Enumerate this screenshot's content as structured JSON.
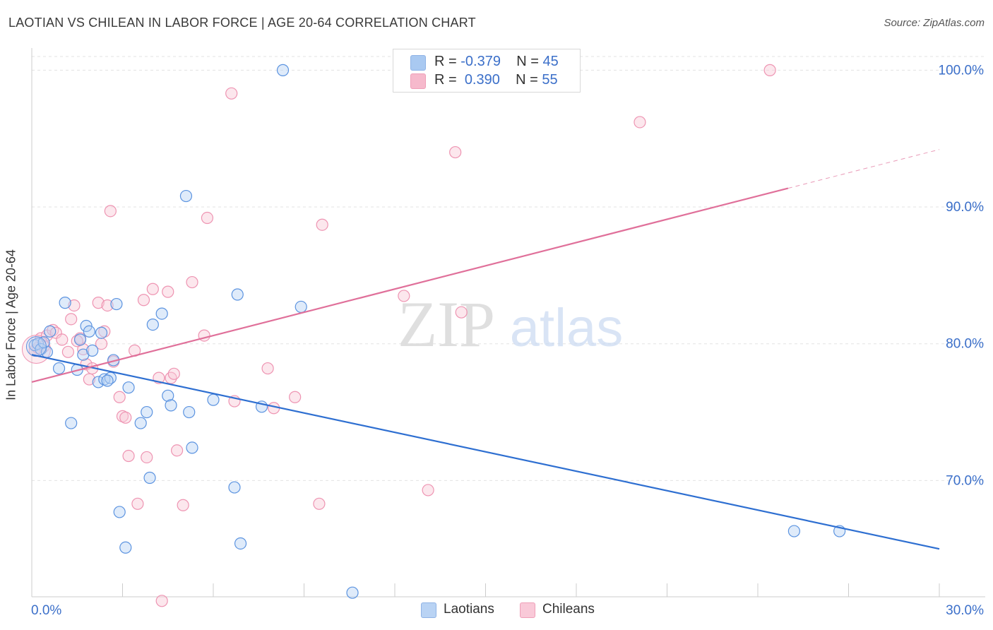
{
  "title": "LAOTIAN VS CHILEAN IN LABOR FORCE | AGE 20-64 CORRELATION CHART",
  "source": "Source: ZipAtlas.com",
  "watermark": {
    "zip": "ZIP",
    "atlas": "atlas"
  },
  "legend": {
    "rows": [
      {
        "r_label": "R =",
        "r_value": "-0.379",
        "n_label": "N =",
        "n_value": "45",
        "color": "#a9c9f1"
      },
      {
        "r_label": "R =",
        "r_value": "0.390",
        "n_label": "N =",
        "n_value": "55",
        "color": "#f6b9cc"
      }
    ]
  },
  "bottom_legend": {
    "laotians": "Laotians",
    "chileans": "Chileans"
  },
  "chart_data": {
    "type": "scatter",
    "ylabel": "In Labor Force | Age 20-64",
    "xlim": [
      0,
      30
    ],
    "ylim": [
      61.5,
      101
    ],
    "x_tick_labels": [
      "0.0%",
      "30.0%"
    ],
    "y_ticks": [
      70,
      80,
      90,
      100
    ],
    "y_tick_labels": [
      "70.0%",
      "80.0%",
      "90.0%",
      "100.0%"
    ],
    "grid": true,
    "colors": {
      "laotians": "#5b93e0",
      "laotians_line": "#2e6fd1",
      "chileans": "#ee94b2",
      "chileans_line": "#e0709a"
    },
    "series": [
      {
        "name": "Laotians",
        "trend": {
          "x0": 0,
          "y0": 79.2,
          "x1": 30,
          "y1": 65.0
        },
        "points": [
          [
            0.1,
            79.9
          ],
          [
            0.2,
            80.0
          ],
          [
            0.3,
            79.6
          ],
          [
            0.5,
            79.4
          ],
          [
            0.6,
            80.9
          ],
          [
            0.9,
            78.2
          ],
          [
            1.1,
            83.0
          ],
          [
            1.3,
            74.2
          ],
          [
            1.5,
            78.1
          ],
          [
            1.6,
            80.3
          ],
          [
            1.7,
            79.2
          ],
          [
            1.8,
            81.3
          ],
          [
            1.9,
            80.9
          ],
          [
            2.0,
            79.5
          ],
          [
            2.2,
            77.2
          ],
          [
            2.3,
            80.8
          ],
          [
            2.4,
            77.4
          ],
          [
            2.6,
            77.5
          ],
          [
            2.7,
            78.8
          ],
          [
            2.8,
            82.9
          ],
          [
            2.9,
            67.7
          ],
          [
            3.1,
            65.1
          ],
          [
            3.2,
            76.8
          ],
          [
            3.6,
            74.2
          ],
          [
            3.8,
            75.0
          ],
          [
            3.9,
            70.2
          ],
          [
            4.0,
            81.4
          ],
          [
            4.3,
            82.2
          ],
          [
            4.5,
            76.2
          ],
          [
            4.6,
            75.5
          ],
          [
            5.1,
            90.8
          ],
          [
            5.2,
            75.0
          ],
          [
            5.3,
            72.4
          ],
          [
            6.0,
            75.9
          ],
          [
            6.7,
            69.5
          ],
          [
            6.8,
            83.6
          ],
          [
            6.9,
            65.4
          ],
          [
            7.6,
            75.4
          ],
          [
            8.3,
            100.0
          ],
          [
            8.9,
            82.7
          ],
          [
            10.6,
            61.8
          ],
          [
            25.2,
            66.3
          ],
          [
            26.7,
            66.3
          ],
          [
            0.4,
            80.1
          ],
          [
            2.5,
            77.3
          ]
        ]
      },
      {
        "name": "Chileans",
        "trend": {
          "x0": 0,
          "y0": 77.2,
          "x1": 30,
          "y1": 94.2,
          "solid_until_x": 25.0
        },
        "points": [
          [
            0.1,
            79.5
          ],
          [
            0.2,
            79.7
          ],
          [
            0.3,
            80.4
          ],
          [
            0.5,
            80.6
          ],
          [
            0.7,
            81.0
          ],
          [
            0.8,
            80.8
          ],
          [
            1.0,
            80.3
          ],
          [
            1.2,
            79.4
          ],
          [
            1.3,
            81.8
          ],
          [
            1.4,
            82.8
          ],
          [
            1.6,
            80.4
          ],
          [
            1.7,
            79.6
          ],
          [
            1.8,
            78.5
          ],
          [
            1.9,
            77.4
          ],
          [
            2.0,
            78.2
          ],
          [
            2.2,
            83.0
          ],
          [
            2.3,
            80.0
          ],
          [
            2.4,
            80.9
          ],
          [
            2.5,
            82.8
          ],
          [
            2.6,
            89.7
          ],
          [
            2.7,
            78.7
          ],
          [
            2.9,
            76.1
          ],
          [
            3.0,
            74.7
          ],
          [
            3.1,
            74.6
          ],
          [
            3.2,
            71.8
          ],
          [
            3.4,
            79.5
          ],
          [
            3.5,
            68.3
          ],
          [
            3.7,
            83.2
          ],
          [
            3.8,
            71.7
          ],
          [
            4.0,
            84.0
          ],
          [
            4.2,
            77.5
          ],
          [
            4.3,
            61.2
          ],
          [
            4.5,
            83.8
          ],
          [
            4.6,
            77.5
          ],
          [
            4.7,
            77.8
          ],
          [
            4.8,
            72.2
          ],
          [
            5.0,
            68.2
          ],
          [
            5.3,
            84.5
          ],
          [
            5.7,
            80.6
          ],
          [
            5.8,
            89.2
          ],
          [
            6.6,
            98.3
          ],
          [
            6.7,
            75.8
          ],
          [
            7.8,
            78.2
          ],
          [
            8.0,
            75.3
          ],
          [
            8.7,
            76.1
          ],
          [
            9.5,
            68.3
          ],
          [
            9.6,
            88.7
          ],
          [
            12.3,
            83.5
          ],
          [
            13.1,
            69.3
          ],
          [
            14.0,
            94.0
          ],
          [
            14.2,
            82.3
          ],
          [
            20.1,
            96.2
          ],
          [
            24.4,
            100.0
          ],
          [
            0.4,
            79.8
          ],
          [
            1.5,
            80.2
          ]
        ]
      }
    ]
  }
}
